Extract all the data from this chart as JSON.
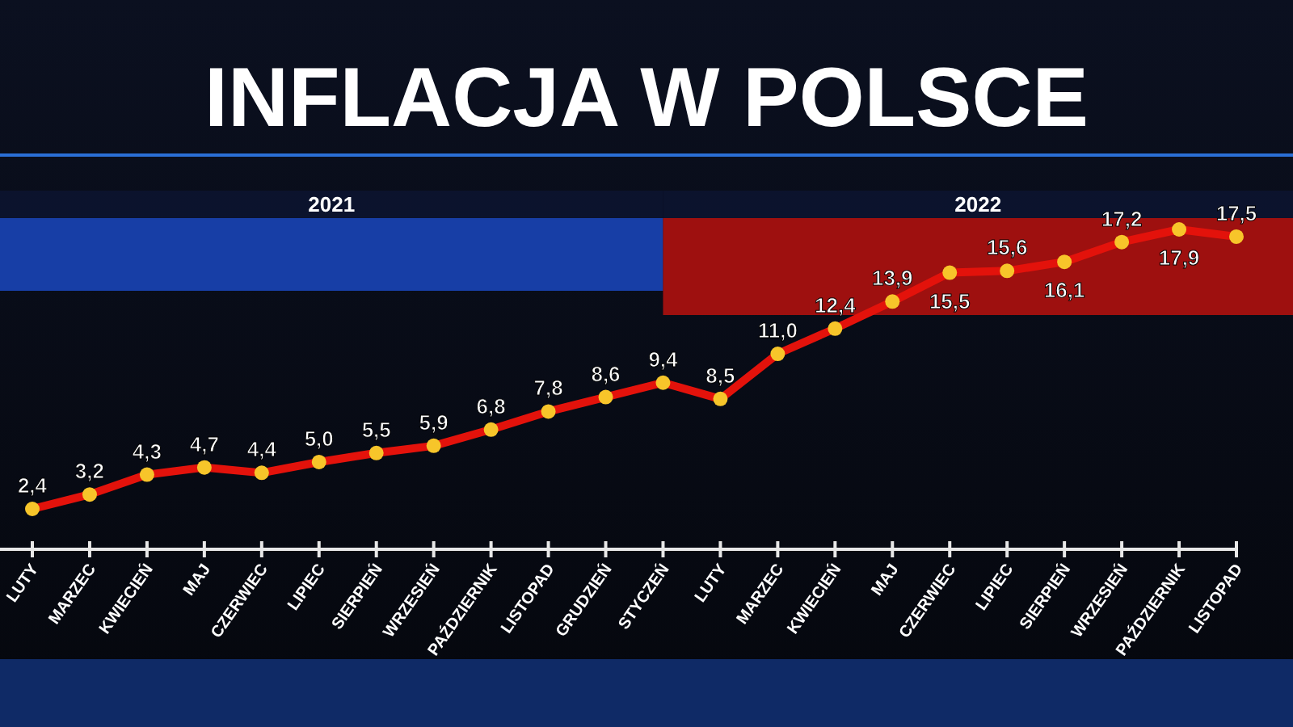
{
  "chart_data": {
    "type": "line",
    "title": "INFLACJA W POLSCE",
    "categories": [
      "LUTY",
      "MARZEC",
      "KWIECIEŃ",
      "MAJ",
      "CZERWIEC",
      "LIPIEC",
      "SIERPIEŃ",
      "WRZESIEŃ",
      "PAŹDZIERNIK",
      "LISTOPAD",
      "GRUDZIEŃ",
      "STYCZEŃ",
      "LUTY",
      "MARZEC",
      "KWIECIEŃ",
      "MAJ",
      "CZERWIEC",
      "LIPIEC",
      "SIERPIEŃ",
      "WRZESIEŃ",
      "PAŹDZIERNIK",
      "LISTOPAD"
    ],
    "series": [
      {
        "color": "#e3120b",
        "values": [
          2.4,
          3.2,
          4.3,
          4.7,
          4.4,
          5.0,
          5.5,
          5.9,
          6.8,
          7.8,
          8.6,
          9.4,
          8.5,
          11.0,
          12.4,
          13.9,
          15.5,
          15.6,
          16.1,
          17.2,
          17.9,
          17.5
        ],
        "value_labels": [
          "2,4",
          "3,2",
          "4,3",
          "4,7",
          "4,4",
          "5,0",
          "5,5",
          "5,9",
          "6,8",
          "7,8",
          "8,6",
          "9,4",
          "8,5",
          "11,0",
          "12,4",
          "13,9",
          "15,5",
          "15,6",
          "16,1",
          "17,2",
          "17,9",
          "17,5"
        ]
      }
    ],
    "annotations": [
      "2021",
      "2022"
    ],
    "marker": "circle",
    "line_style": "solid"
  }
}
